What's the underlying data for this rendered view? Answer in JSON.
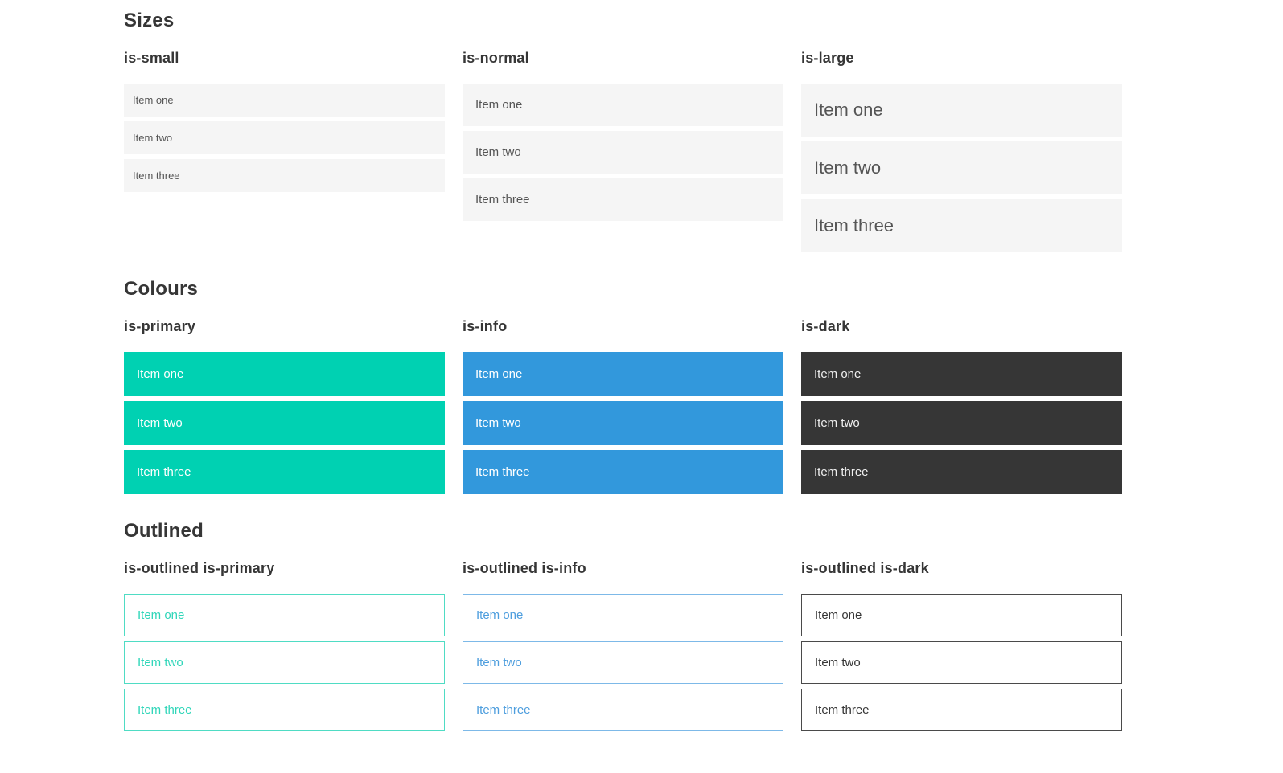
{
  "colors": {
    "primary": "#00d1b2",
    "info": "#3298dc",
    "dark": "#363636",
    "light_bg": "#f5f5f5",
    "heading": "#363636",
    "text": "#555555",
    "dark_item_text": "#f0f0f0",
    "primary_outline_border": "#4fdcc4",
    "primary_outline_text": "#30d6b9",
    "info_outline_border": "#7db9e8",
    "info_outline_text": "#4e9ede",
    "dark_outline_border": "#4a4a4a",
    "dark_outline_text": "#363636"
  },
  "sections": [
    {
      "title": "Sizes",
      "columns": [
        {
          "label": "is-small",
          "items": [
            "Item one",
            "Item two",
            "Item three"
          ]
        },
        {
          "label": "is-normal",
          "items": [
            "Item one",
            "Item two",
            "Item three"
          ]
        },
        {
          "label": "is-large",
          "items": [
            "Item one",
            "Item two",
            "Item three"
          ]
        }
      ]
    },
    {
      "title": "Colours",
      "columns": [
        {
          "label": "is-primary",
          "items": [
            "Item one",
            "Item two",
            "Item three"
          ]
        },
        {
          "label": "is-info",
          "items": [
            "Item one",
            "Item two",
            "Item three"
          ]
        },
        {
          "label": "is-dark",
          "items": [
            "Item one",
            "Item two",
            "Item three"
          ]
        }
      ]
    },
    {
      "title": "Outlined",
      "columns": [
        {
          "label": "is-outlined is-primary",
          "items": [
            "Item one",
            "Item two",
            "Item three"
          ]
        },
        {
          "label": "is-outlined is-info",
          "items": [
            "Item one",
            "Item two",
            "Item three"
          ]
        },
        {
          "label": "is-outlined is-dark",
          "items": [
            "Item one",
            "Item two",
            "Item three"
          ]
        }
      ]
    }
  ]
}
